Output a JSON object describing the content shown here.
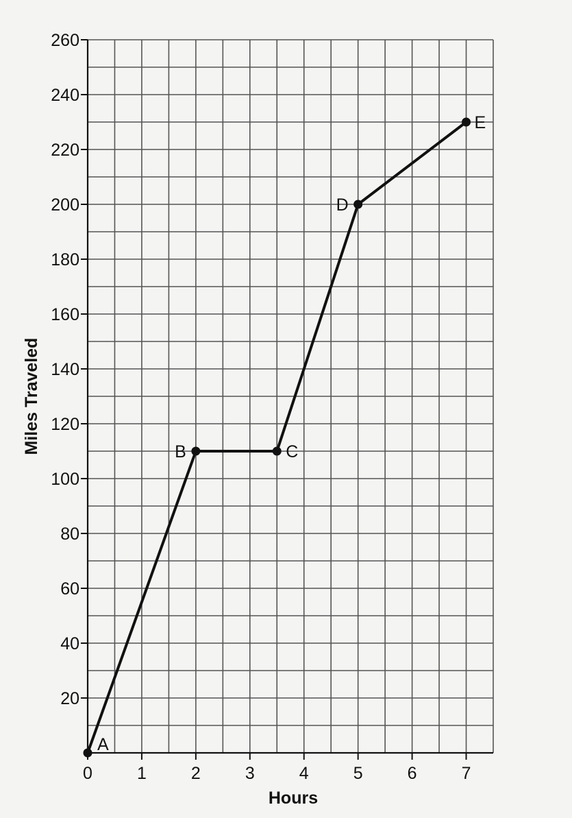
{
  "chart_data": {
    "type": "line",
    "title": "",
    "xlabel": "Hours",
    "ylabel": "Miles Traveled",
    "xlim": [
      0,
      7.5
    ],
    "ylim": [
      0,
      260
    ],
    "x_ticks": [
      0,
      1,
      2,
      3,
      4,
      5,
      6,
      7
    ],
    "x_tick_labels": [
      "0",
      "1",
      "2",
      "3",
      "4",
      "5",
      "6",
      "7"
    ],
    "y_ticks": [
      20,
      40,
      60,
      80,
      100,
      120,
      140,
      160,
      180,
      200,
      220,
      240,
      260
    ],
    "y_tick_labels": [
      "20",
      "40",
      "60",
      "80",
      "100",
      "120",
      "140",
      "160",
      "180",
      "200",
      "220",
      "240",
      "260"
    ],
    "grid": true,
    "grid_minor_x": 0.5,
    "grid_minor_y": 10,
    "series": [
      {
        "points": [
          {
            "label": "A",
            "x": 0,
            "y": 0
          },
          {
            "label": "B",
            "x": 2,
            "y": 110
          },
          {
            "label": "C",
            "x": 3.5,
            "y": 110
          },
          {
            "label": "D",
            "x": 5,
            "y": 200
          },
          {
            "label": "E",
            "x": 7,
            "y": 230
          }
        ]
      }
    ],
    "colors": {
      "line": "#111111",
      "grid": "#555555",
      "background": "#f4f4f2"
    }
  }
}
